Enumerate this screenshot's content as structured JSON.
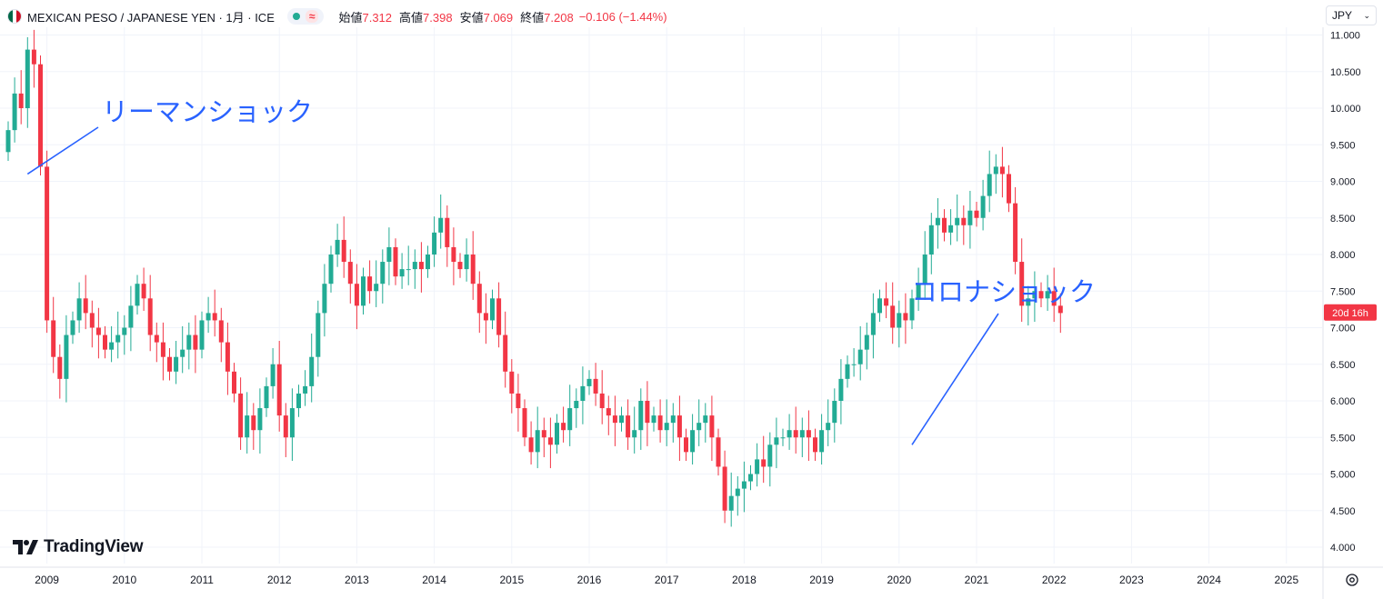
{
  "header": {
    "symbol": "MEXICAN PESO / JAPANESE YEN · 1月 · ICE",
    "status_approx": "≈",
    "open_label": "始値",
    "open": "7.312",
    "high_label": "高値",
    "high": "7.398",
    "low_label": "安値",
    "low": "7.069",
    "close_label": "終値",
    "close": "7.208",
    "change": "−0.106 (−1.44%)"
  },
  "currency_select": {
    "value": "JPY"
  },
  "price_badge": {
    "label": "20d 16h",
    "value": 7.208
  },
  "logo": {
    "text": "TradingView"
  },
  "annotations": [
    {
      "text": "リーマンショック",
      "date": "2008-10",
      "price": 9.1
    },
    {
      "text": "コロナショック",
      "date": "2020-03",
      "price": 5.4
    }
  ],
  "colors": {
    "up": "#22ab94",
    "down": "#f23645",
    "annotation": "#2962ff",
    "grid": "#f0f3fa",
    "axis_text": "#131722"
  },
  "chart_data": {
    "type": "candlestick",
    "title": "MEXICAN PESO / JAPANESE YEN · 1月 · ICE",
    "interval": "1M",
    "x_start": "2008-07",
    "y_ticks": [
      "4.000",
      "4.500",
      "5.000",
      "5.500",
      "6.000",
      "6.500",
      "7.000",
      "7.500",
      "8.000",
      "8.500",
      "9.000",
      "9.500",
      "10.000",
      "10.500",
      "11.000"
    ],
    "x_ticks": [
      "2009",
      "2010",
      "2011",
      "2012",
      "2013",
      "2014",
      "2015",
      "2016",
      "2017",
      "2018",
      "2019",
      "2020",
      "2021",
      "2022",
      "2023",
      "2024",
      "2025"
    ],
    "ylim": [
      3.75,
      11.05
    ],
    "grid": true,
    "close": [
      9.7,
      10.2,
      10.0,
      10.8,
      10.6,
      9.2,
      7.1,
      6.6,
      6.3,
      6.9,
      7.1,
      7.4,
      7.2,
      7.0,
      6.9,
      6.7,
      6.8,
      6.9,
      7.0,
      7.3,
      7.6,
      7.4,
      6.9,
      6.8,
      6.6,
      6.4,
      6.6,
      6.7,
      6.9,
      6.7,
      7.1,
      7.2,
      7.1,
      6.8,
      6.4,
      6.1,
      5.5,
      5.8,
      5.6,
      5.9,
      6.2,
      6.5,
      5.8,
      5.5,
      5.9,
      6.1,
      6.2,
      6.6,
      7.2,
      7.6,
      8.0,
      8.2,
      7.9,
      7.6,
      7.3,
      7.7,
      7.5,
      7.6,
      7.9,
      8.1,
      7.7,
      7.8,
      7.8,
      7.9,
      7.8,
      8.0,
      8.3,
      8.5,
      8.1,
      7.9,
      7.8,
      8.0,
      7.6,
      7.2,
      7.1,
      7.4,
      6.9,
      6.4,
      6.1,
      5.9,
      5.5,
      5.3,
      5.6,
      5.5,
      5.4,
      5.7,
      5.6,
      5.9,
      6.0,
      6.2,
      6.3,
      6.1,
      5.9,
      5.8,
      5.7,
      5.8,
      5.5,
      5.6,
      6.0,
      5.7,
      5.8,
      5.6,
      5.7,
      5.8,
      5.5,
      5.3,
      5.6,
      5.7,
      5.8,
      5.5,
      5.1,
      4.5,
      4.7,
      4.8,
      4.9,
      5.0,
      5.2,
      5.1,
      5.4,
      5.5,
      5.5,
      5.6,
      5.5,
      5.6,
      5.5,
      5.3,
      5.6,
      5.7,
      6.0,
      6.3,
      6.5,
      6.5,
      6.7,
      6.9,
      7.2,
      7.4,
      7.3,
      7.0,
      7.2,
      7.1,
      7.4,
      7.6,
      8.0,
      8.4,
      8.5,
      8.3,
      8.4,
      8.5,
      8.4,
      8.6,
      8.5,
      8.8,
      9.1,
      9.2,
      9.1,
      8.7,
      7.9,
      7.3,
      7.4,
      7.5,
      7.4,
      7.5,
      7.3,
      7.2
    ],
    "open": [
      9.4,
      9.7,
      10.2,
      10.0,
      10.8,
      10.6,
      9.2,
      7.1,
      6.6,
      6.3,
      6.9,
      7.1,
      7.4,
      7.2,
      7.0,
      6.9,
      6.7,
      6.8,
      6.9,
      7.0,
      7.3,
      7.6,
      7.4,
      6.9,
      6.8,
      6.6,
      6.4,
      6.6,
      6.7,
      6.9,
      6.7,
      7.1,
      7.2,
      7.1,
      6.8,
      6.4,
      6.1,
      5.5,
      5.8,
      5.6,
      5.9,
      6.2,
      6.5,
      5.8,
      5.5,
      5.9,
      6.1,
      6.2,
      6.6,
      7.2,
      7.6,
      8.0,
      8.2,
      7.9,
      7.6,
      7.3,
      7.7,
      7.5,
      7.6,
      7.9,
      8.1,
      7.7,
      7.8,
      7.8,
      7.9,
      7.8,
      8.0,
      8.3,
      8.5,
      8.1,
      7.9,
      7.8,
      8.0,
      7.6,
      7.2,
      7.1,
      7.4,
      6.9,
      6.4,
      6.1,
      5.9,
      5.5,
      5.3,
      5.6,
      5.5,
      5.4,
      5.7,
      5.6,
      5.9,
      6.0,
      6.2,
      6.3,
      6.1,
      5.9,
      5.8,
      5.7,
      5.8,
      5.5,
      5.6,
      6.0,
      5.7,
      5.8,
      5.6,
      5.7,
      5.8,
      5.5,
      5.3,
      5.6,
      5.7,
      5.8,
      5.5,
      5.1,
      4.5,
      4.7,
      4.8,
      4.9,
      5.0,
      5.2,
      5.1,
      5.4,
      5.5,
      5.5,
      5.6,
      5.5,
      5.6,
      5.5,
      5.3,
      5.6,
      5.7,
      6.0,
      6.3,
      6.5,
      6.5,
      6.7,
      6.9,
      7.2,
      7.4,
      7.3,
      7.0,
      7.2,
      7.1,
      7.4,
      7.6,
      8.0,
      8.4,
      8.5,
      8.3,
      8.4,
      8.5,
      8.4,
      8.6,
      8.5,
      8.8,
      9.1,
      9.2,
      9.1,
      8.7,
      7.9,
      7.3,
      7.4,
      7.5,
      7.4,
      7.5,
      7.3
    ]
  }
}
